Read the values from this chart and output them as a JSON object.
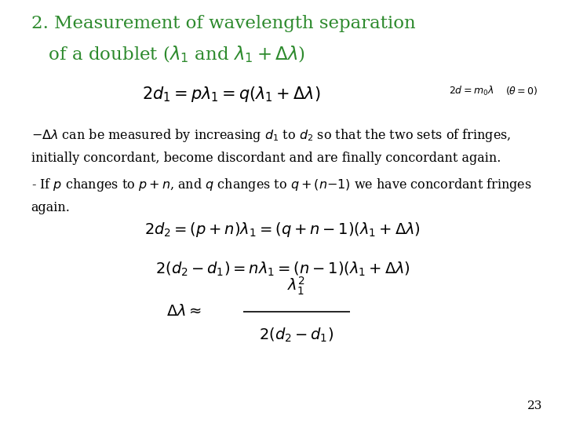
{
  "bg_color": "#ffffff",
  "title_color": "#2d8a2d",
  "black": "#000000",
  "title_line1": "2. Measurement of wavelength separation",
  "title_line2": "   of a doublet ($\\lambda_1$ and $\\lambda_1+\\Delta\\lambda$)",
  "eq1": "$2d_1 = p\\lambda_1 = q\\left(\\lambda_1 + \\Delta\\lambda\\right)$",
  "eq1_note1": "$2d = m_0\\lambda$",
  "eq1_note2": "$(\\theta = 0)$",
  "para_line1": "$- \\Delta\\lambda$ can be measured by increasing $d_1$ to $d_2$ so that the two sets of fringes,",
  "para_line2": "initially concordant, become discordant and are finally concordant again.",
  "para_line3": "- If $p$ changes to $p+n$, and $q$ changes to $q+(n\\mathrm{-}1)$ we have concordant fringes",
  "para_line4": "again.",
  "eq2": "$2d_2 = (p+n)\\lambda_1 = (q+n-1)(\\lambda_1 + \\Delta\\lambda)$",
  "eq3": "$2(d_2-d_1) = n\\lambda_1 = (n-1)(\\lambda_1 + \\Delta\\lambda)$",
  "eq4_lhs": "$\\Delta\\lambda \\approx$",
  "eq4_num": "$\\lambda_1^2$",
  "eq4_den": "$2(d_2-d_1)$",
  "page_num": "23",
  "title_fs": 16.5,
  "body_fs": 11.5,
  "eq1_fs": 15,
  "eq_fs": 14,
  "note_fs": 9,
  "page_fs": 11
}
